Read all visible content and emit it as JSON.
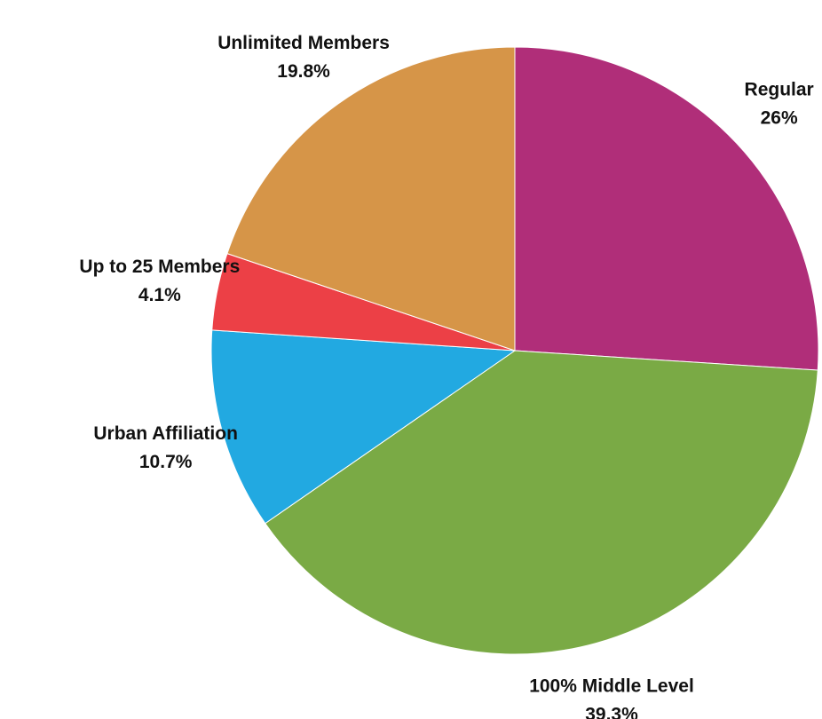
{
  "chart_data": {
    "type": "pie",
    "categories": [
      "Regular",
      "100% Middle Level",
      "Urban Affiliation",
      "Up to 25 Members",
      "Unlimited Members"
    ],
    "values": [
      26,
      39.3,
      10.7,
      4.1,
      19.8
    ],
    "value_labels": [
      "26%",
      "39.3%",
      "10.7%",
      "4.1%",
      "19.8%"
    ],
    "colors": [
      "#b02e79",
      "#7aaa45",
      "#22a9e1",
      "#ec4046",
      "#d69548"
    ]
  }
}
